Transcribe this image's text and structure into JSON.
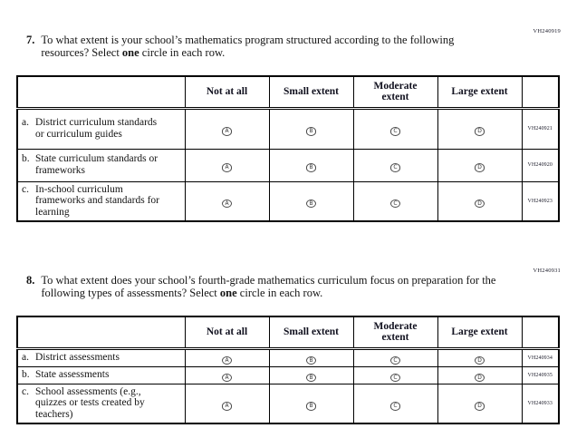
{
  "answer_letters": [
    "A",
    "B",
    "C",
    "D"
  ],
  "questions": [
    {
      "id_code": "VH240919",
      "number": "7.",
      "prompt_before": "To what extent is your school’s mathematics program structured according to the following resources? Select ",
      "prompt_bold": "one",
      "prompt_after": " circle in each row.",
      "table": {
        "headers": [
          "Not at all",
          "Small extent",
          "Moderate\nextent",
          "Large extent"
        ],
        "rows": [
          {
            "letter": "a.",
            "label": "District curriculum standards or curriculum guides",
            "code": "VH240921"
          },
          {
            "letter": "b.",
            "label": "State curriculum standards or frameworks",
            "code": "VH240920"
          },
          {
            "letter": "c.",
            "label": "In-school curriculum frameworks and standards for learning",
            "code": "VH240923"
          }
        ]
      }
    },
    {
      "id_code": "VH240931",
      "number": "8.",
      "prompt_before": "To what extent does your school’s fourth-grade mathematics curriculum focus on preparation for the following types of assessments? Select ",
      "prompt_bold": "one",
      "prompt_after": " circle in each row.",
      "table": {
        "headers": [
          "Not at all",
          "Small extent",
          "Moderate\nextent",
          "Large extent"
        ],
        "rows": [
          {
            "letter": "a.",
            "label": "District assessments",
            "code": "VH240934"
          },
          {
            "letter": "b.",
            "label": "State assessments",
            "code": "VH240935"
          },
          {
            "letter": "c.",
            "label": "School assessments (e.g., quizzes or tests created by teachers)",
            "code": "VH240933"
          }
        ]
      }
    }
  ]
}
